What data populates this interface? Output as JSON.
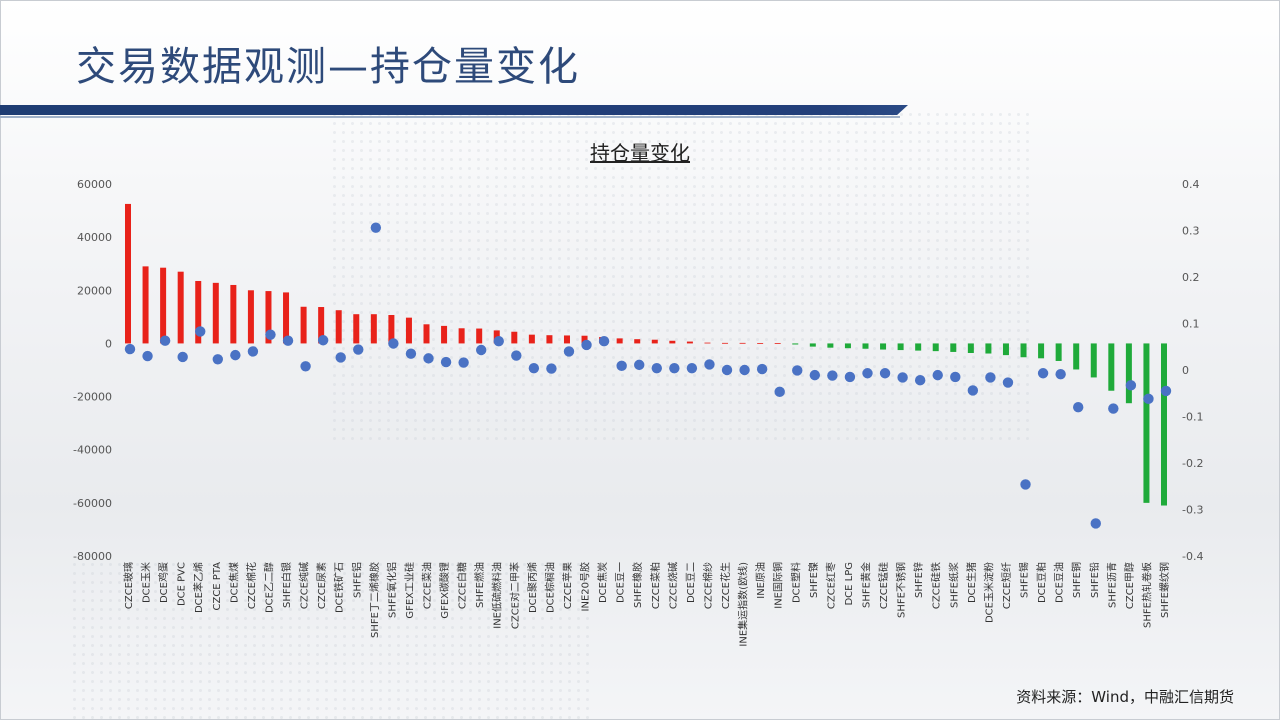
{
  "page": {
    "title": "交易数据观测—持仓量变化",
    "source": "资料来源：Wind，中融汇信期货"
  },
  "colors": {
    "title": "#2e4a7a",
    "rule": "#1f3d73",
    "positive_bar": "#e8221a",
    "negative_bar": "#1faa3a",
    "dot": "#4a72c4"
  },
  "chart_data": {
    "type": "bar",
    "title": "持仓量变化",
    "left_axis": {
      "min": -80000,
      "max": 60000,
      "ticks": [
        60000,
        40000,
        20000,
        0,
        -20000,
        -40000,
        -60000,
        -80000
      ]
    },
    "right_axis": {
      "min": -0.4,
      "max": 0.4,
      "ticks": [
        "0.4",
        "0.3",
        "0.2",
        "0.1",
        "0",
        "-0.1",
        "-0.2",
        "-0.3",
        "-0.4"
      ],
      "tick_values": [
        0.4,
        0.3,
        0.2,
        0.1,
        0,
        -0.1,
        -0.2,
        -0.3,
        -0.4
      ]
    },
    "grid": false,
    "legend": "none",
    "categories": [
      "CZCE玻璃",
      "DCE玉米",
      "DCE鸡蛋",
      "DCE PVC",
      "DCE苯乙烯",
      "CZCE PTA",
      "DCE焦煤",
      "CZCE棉花",
      "DCE乙二醇",
      "SHFE白银",
      "CZCE纯碱",
      "CZCE尿素",
      "DCE铁矿石",
      "SHFE铝",
      "SHFE丁二烯橡胶",
      "SHFE氧化铝",
      "GFEX工业硅",
      "CZCE菜油",
      "GFEX碳酸锂",
      "CZCE白糖",
      "SHFE燃油",
      "INE低硫燃料油",
      "CZCE对二甲苯",
      "DCE聚丙烯",
      "DCE棕榈油",
      "CZCE苹果",
      "INE20号胶",
      "DCE焦炭",
      "DCE豆一",
      "SHFE橡胶",
      "CZCE菜粕",
      "CZCE烧碱",
      "DCE豆二",
      "CZCE棉纱",
      "CZCE花生",
      "INE集运指数(欧线)",
      "INE原油",
      "INE国际铜",
      "DCE塑料",
      "SHFE镍",
      "CZCE红枣",
      "DCE LPG",
      "SHFE黄金",
      "CZCE锰硅",
      "SHFE不锈钢",
      "SHFE锌",
      "CZCE硅铁",
      "SHFE纸浆",
      "DCE生猪",
      "DCE玉米淀粉",
      "CZCE短纤",
      "SHFE锡",
      "DCE豆粕",
      "DCE豆油",
      "SHFE铜",
      "SHFE铅",
      "SHFE沥青",
      "CZCE甲醇",
      "SHFE热轧卷板",
      "SHFE螺纹钢"
    ],
    "series": [
      {
        "axis": "left",
        "values": [
          52500,
          29000,
          28500,
          27000,
          23500,
          22800,
          22000,
          20000,
          19700,
          19200,
          13800,
          13700,
          12500,
          11000,
          11000,
          10700,
          9700,
          7200,
          6600,
          5700,
          5600,
          4900,
          4400,
          3300,
          3100,
          3000,
          2900,
          2400,
          1900,
          1600,
          1400,
          1000,
          700,
          300,
          200,
          200,
          100,
          100,
          -400,
          -1200,
          -1600,
          -1800,
          -2000,
          -2300,
          -2500,
          -2700,
          -2900,
          -3200,
          -3600,
          -3800,
          -4400,
          -5200,
          -5600,
          -6600,
          -9800,
          -12800,
          -17800,
          -22500,
          -60000,
          -61000
        ]
      },
      {
        "axis": "right",
        "values": [
          0.045,
          0.03,
          0.063,
          0.028,
          0.083,
          0.023,
          0.032,
          0.04,
          0.076,
          0.063,
          0.008,
          0.064,
          0.027,
          0.044,
          0.306,
          0.057,
          0.035,
          0.025,
          0.017,
          0.016,
          0.043,
          0.062,
          0.031,
          0.004,
          0.003,
          0.04,
          0.054,
          0.062,
          0.009,
          0.011,
          0.004,
          0.004,
          0.004,
          0.012,
          0,
          0,
          0.002,
          -0.047,
          -0.001,
          -0.011,
          -0.012,
          -0.015,
          -0.007,
          -0.007,
          -0.016,
          -0.022,
          -0.011,
          -0.015,
          -0.044,
          -0.016,
          -0.027,
          -0.246,
          -0.007,
          -0.009,
          -0.08,
          -0.33,
          -0.083,
          -0.033,
          -0.062,
          -0.045
        ]
      }
    ]
  }
}
